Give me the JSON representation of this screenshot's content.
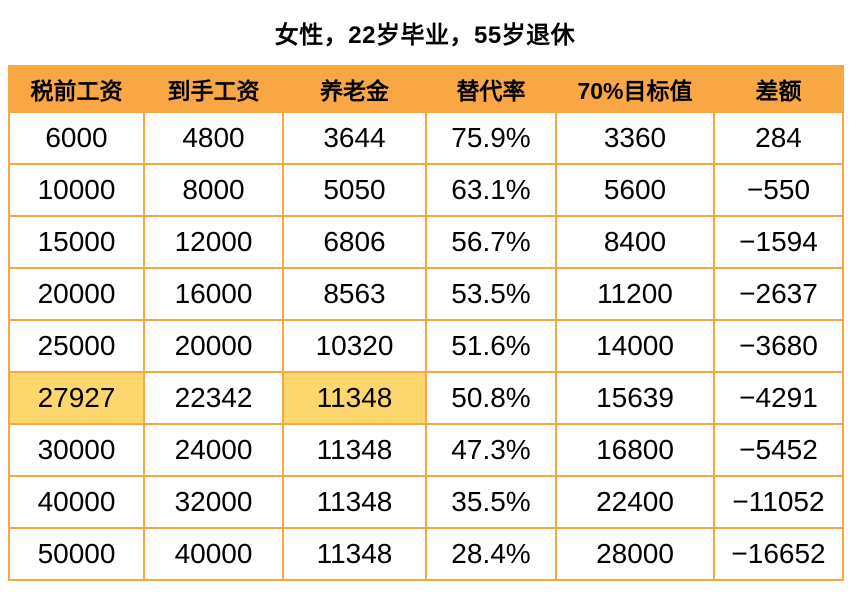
{
  "title": "女性，22岁毕业，55岁退休",
  "colors": {
    "header_bg": "#F9A645",
    "grid_border": "#F9A645",
    "highlight_bg": "#FBD76E",
    "text": "#000000",
    "background": "#FFFFFF"
  },
  "chart_data": {
    "type": "table",
    "title": "女性，22岁毕业，55岁退休",
    "columns": [
      "税前工资",
      "到手工资",
      "养老金",
      "替代率",
      "70%目标值",
      "差额"
    ],
    "rows": [
      [
        "6000",
        "4800",
        "3644",
        "75.9%",
        "3360",
        "284"
      ],
      [
        "10000",
        "8000",
        "5050",
        "63.1%",
        "5600",
        "−550"
      ],
      [
        "15000",
        "12000",
        "6806",
        "56.7%",
        "8400",
        "−1594"
      ],
      [
        "20000",
        "16000",
        "8563",
        "53.5%",
        "11200",
        "−2637"
      ],
      [
        "25000",
        "20000",
        "10320",
        "51.6%",
        "14000",
        "−3680"
      ],
      [
        "27927",
        "22342",
        "11348",
        "50.8%",
        "15639",
        "−4291"
      ],
      [
        "30000",
        "24000",
        "11348",
        "47.3%",
        "16800",
        "−5452"
      ],
      [
        "40000",
        "32000",
        "11348",
        "35.5%",
        "22400",
        "−11052"
      ],
      [
        "50000",
        "40000",
        "11348",
        "28.4%",
        "28000",
        "−16652"
      ]
    ],
    "highlighted_cells": [
      {
        "row": 5,
        "col": 0
      },
      {
        "row": 5,
        "col": 2
      }
    ]
  }
}
